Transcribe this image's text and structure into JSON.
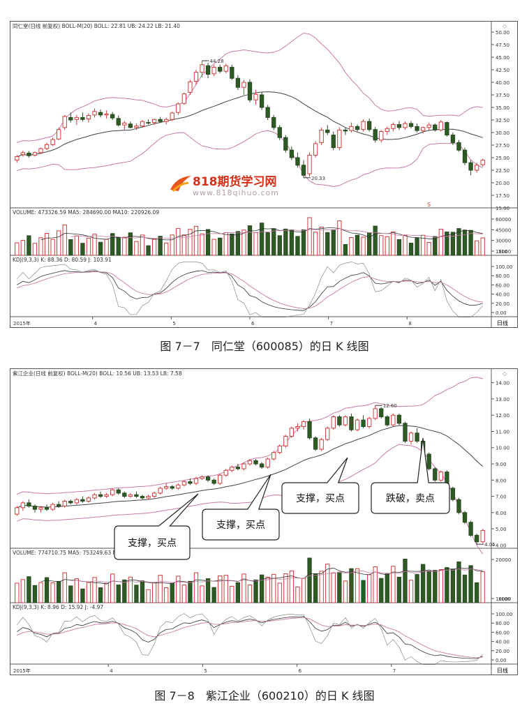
{
  "watermark": {
    "title": "818期货学习网",
    "url": "www.818qihuo.com"
  },
  "figure1": {
    "caption": "图 7－7　同仁堂（600085）的日 K 线图",
    "price_header": "同仁堂(日线 前复权) BOLL-M(20)  BOLL: 22.81  UB: 24.22  LB: 21.40",
    "volume_header": "VOLUME: 473326.59  MA5: 284690.00  MA10: 220926.09",
    "kdj_header": "KDJ(9,3,3)  K: 88.36  D: 80.59  J: 103.91",
    "price_ticks": [
      "50.00",
      "47.50",
      "45.00",
      "42.50",
      "40.00",
      "37.50",
      "35.00",
      "32.50",
      "30.00",
      "27.50",
      "25.00",
      "22.50",
      "20.00",
      "17.50",
      "15.00"
    ],
    "volume_ticks": [
      "60000",
      "45000",
      "30000",
      "15000"
    ],
    "volume_unit": "X10",
    "kdj_ticks": [
      "100.00",
      "80.00",
      "60.00",
      "40.00",
      "20.00",
      "0.00"
    ],
    "date_labels": [
      "2015年",
      "4",
      "5",
      "6",
      "7",
      "8"
    ],
    "period_label": "日线",
    "high_label": "44.28",
    "low_label": "20.33",
    "marker": "S"
  },
  "figure2": {
    "caption": "图 7－8　紫江企业（600210）的日 K 线图",
    "price_header": "紫江企业(日线 前复权) BOLL-M(20)  BOLL: 10.56  UB: 13.53  LB: 7.58",
    "volume_header": "VOLUME: 774710.75  MA5: 753249.63  MA10",
    "kdj_header": "KDJ(9,3,3)  K: 8.96  D: 15.92  J: -4.97",
    "price_ticks": [
      "14.00",
      "13.00",
      "12.00",
      "11.00",
      "10.00",
      "9.00",
      "8.00",
      "7.00",
      "6.00",
      "5.00",
      "4.00"
    ],
    "volume_ticks": [
      "20000",
      "10000"
    ],
    "volume_unit": "X100",
    "kdj_ticks": [
      "100.00",
      "80.00",
      "60.00",
      "40.00",
      "20.00",
      "0.00"
    ],
    "date_labels": [
      "2015年",
      "4",
      "5",
      "6",
      "7"
    ],
    "period_label": "日线",
    "high_label": "12.60",
    "low_label": "4.05",
    "callouts": [
      "支撑，买点",
      "支撑，买点",
      "支撑，买点",
      "跌破，卖点"
    ]
  },
  "chart_data": [
    {
      "type": "candlestick",
      "title": "同仁堂（600085）的日 K 线图",
      "indicator": "BOLL-M(20)",
      "ylim": [
        15,
        50
      ],
      "x": [
        "2015年",
        "4",
        "5",
        "6",
        "7",
        "8"
      ],
      "series": [
        {
          "values": [
            [
              24.5,
              25.5,
              24,
              25.2
            ],
            [
              25.6,
              26.4,
              25.2,
              26.0
            ],
            [
              25.9,
              26.3,
              25.0,
              25.4
            ],
            [
              25.5,
              26.2,
              25.2,
              26.0
            ],
            [
              26,
              27,
              25.7,
              26.8
            ],
            [
              26.8,
              28,
              26.5,
              27.6
            ],
            [
              27.6,
              29,
              27.3,
              28.6
            ],
            [
              28.7,
              31,
              28.5,
              30.6
            ],
            [
              31,
              33.5,
              30.5,
              33.2
            ],
            [
              33,
              34,
              32,
              32.5
            ],
            [
              32.6,
              33.5,
              31.5,
              33.0
            ],
            [
              33,
              34,
              32.2,
              32.6
            ],
            [
              32.7,
              33.8,
              32.0,
              33.4
            ],
            [
              33.5,
              34.8,
              33.0,
              34.2
            ],
            [
              34,
              34.6,
              33,
              33.5
            ],
            [
              33.5,
              34.4,
              32.8,
              33.7
            ],
            [
              33.6,
              34.1,
              32.5,
              32.9
            ],
            [
              32.8,
              33.4,
              31.2,
              31.5
            ],
            [
              31.5,
              32.3,
              30.5,
              31.9
            ],
            [
              31.7,
              32.2,
              30.8,
              31.0
            ],
            [
              31,
              31.8,
              30.5,
              31.3
            ],
            [
              31.3,
              32.5,
              31.0,
              32.2
            ],
            [
              32,
              32.6,
              31.6,
              31.9
            ],
            [
              32,
              32.8,
              31.5,
              32.6
            ],
            [
              32.6,
              33.1,
              31.9,
              32.2
            ],
            [
              32.2,
              33.0,
              31.6,
              32.6
            ],
            [
              32.6,
              34.2,
              32.3,
              33.9
            ],
            [
              34,
              36,
              33.5,
              35.7
            ],
            [
              35.8,
              38,
              35.5,
              37.7
            ],
            [
              38,
              40.5,
              37.5,
              40.1
            ],
            [
              40.2,
              42.5,
              39.5,
              42.0
            ],
            [
              42,
              44.3,
              41,
              43.5
            ],
            [
              43.3,
              43.9,
              40.8,
              41.6
            ],
            [
              41.7,
              43.5,
              41.2,
              43.0
            ],
            [
              43,
              43.5,
              41.8,
              42.2
            ],
            [
              42.2,
              43.7,
              41.8,
              43.3
            ],
            [
              43,
              43.5,
              40.5,
              40.8
            ],
            [
              40.8,
              41.4,
              38.5,
              39.0
            ],
            [
              39,
              40.5,
              37.5,
              40.0
            ],
            [
              40,
              40.6,
              36,
              36.5
            ],
            [
              36.5,
              38.5,
              35.5,
              37.6
            ],
            [
              37.5,
              38,
              34.5,
              35.0
            ],
            [
              35,
              35.5,
              32.5,
              33.0
            ],
            [
              33,
              33.5,
              30.5,
              31.0
            ],
            [
              31,
              31.5,
              28.5,
              29.0
            ],
            [
              29,
              29.5,
              26,
              26.5
            ],
            [
              26.5,
              27.2,
              24.5,
              25.0
            ],
            [
              25,
              26,
              23,
              23.5
            ],
            [
              23.5,
              24.5,
              21,
              21.5
            ],
            [
              21.8,
              26,
              21.2,
              25.5
            ],
            [
              25.5,
              28.3,
              25.0,
              27.8
            ],
            [
              28,
              31,
              27.5,
              30.5
            ],
            [
              30.5,
              31.5,
              29.5,
              30.0
            ],
            [
              29.5,
              30.2,
              26.5,
              27.0
            ],
            [
              27,
              31,
              26.5,
              30.5
            ],
            [
              30.5,
              31,
              29.5,
              30.3
            ],
            [
              30.4,
              32.0,
              30.0,
              31.2
            ],
            [
              31.2,
              31.6,
              30.2,
              30.6
            ],
            [
              30.6,
              32.6,
              30.2,
              32.2
            ],
            [
              32.2,
              32.8,
              30.2,
              30.6
            ],
            [
              30.6,
              31.1,
              28.0,
              28.5
            ],
            [
              28.5,
              30.5,
              28.0,
              30.2
            ],
            [
              30.2,
              31.2,
              29.5,
              30.8
            ],
            [
              30.8,
              32.0,
              30.2,
              31.6
            ],
            [
              31.6,
              32.3,
              30.5,
              31.0
            ],
            [
              31,
              32.2,
              30.6,
              31.8
            ],
            [
              31.8,
              32.3,
              30.8,
              31.2
            ],
            [
              31.2,
              31.8,
              30.0,
              30.4
            ],
            [
              30.4,
              31.2,
              29.8,
              31.0
            ],
            [
              31,
              32.0,
              30.5,
              31.5
            ],
            [
              31.5,
              31.8,
              30.2,
              30.5
            ],
            [
              30.5,
              32.5,
              30.2,
              32.1
            ],
            [
              32,
              32.2,
              29.2,
              29.5
            ],
            [
              29.5,
              30.0,
              27.5,
              28.0
            ],
            [
              28,
              28.5,
              26.2,
              26.5
            ],
            [
              26.5,
              27,
              23.5,
              24.0
            ],
            [
              24,
              24.5,
              21.5,
              22.5
            ],
            [
              22.5,
              24.0,
              22.0,
              23.5
            ],
            [
              23.6,
              24.8,
              23.2,
              24.5
            ]
          ]
        }
      ]
    },
    {
      "type": "candlestick",
      "title": "紫江企业（600210）的日 K 线图",
      "indicator": "BOLL-M(20)",
      "ylim": [
        3.8,
        14.2
      ],
      "x": [
        "2015年",
        "4",
        "5",
        "6",
        "7"
      ],
      "series": [
        {
          "values": [
            [
              5.9,
              6.4,
              5.8,
              6.3
            ],
            [
              6.3,
              6.7,
              6.1,
              6.6
            ],
            [
              6.6,
              6.8,
              6.3,
              6.4
            ],
            [
              6.4,
              6.5,
              6.0,
              6.2
            ],
            [
              6.2,
              6.4,
              6.0,
              6.3
            ],
            [
              6.3,
              6.5,
              6.1,
              6.2
            ],
            [
              6.2,
              6.6,
              6.1,
              6.5
            ],
            [
              6.5,
              6.7,
              6.3,
              6.4
            ],
            [
              6.4,
              6.8,
              6.3,
              6.7
            ],
            [
              6.7,
              6.8,
              6.5,
              6.6
            ],
            [
              6.6,
              6.9,
              6.5,
              6.8
            ],
            [
              6.8,
              7.0,
              6.6,
              6.7
            ],
            [
              6.7,
              7.0,
              6.6,
              6.9
            ],
            [
              6.9,
              7.2,
              6.8,
              7.1
            ],
            [
              7.1,
              7.3,
              6.9,
              7.0
            ],
            [
              7.0,
              7.2,
              6.9,
              7.1
            ],
            [
              7.1,
              7.5,
              7.0,
              7.4
            ],
            [
              7.4,
              7.5,
              7.1,
              7.2
            ],
            [
              7.2,
              7.3,
              6.9,
              7.0
            ],
            [
              7.0,
              7.2,
              6.9,
              7.1
            ],
            [
              7.1,
              7.3,
              6.9,
              7.0
            ],
            [
              7.0,
              7.1,
              6.8,
              6.9
            ],
            [
              6.9,
              7.1,
              6.8,
              7.0
            ],
            [
              7.0,
              7.3,
              6.9,
              7.2
            ],
            [
              7.2,
              7.6,
              7.1,
              7.5
            ],
            [
              7.5,
              7.8,
              7.4,
              7.6
            ],
            [
              7.6,
              7.7,
              7.4,
              7.5
            ],
            [
              7.5,
              7.8,
              7.4,
              7.7
            ],
            [
              7.7,
              8.0,
              7.6,
              7.9
            ],
            [
              7.9,
              8.1,
              7.7,
              7.8
            ],
            [
              7.8,
              8.2,
              7.7,
              8.1
            ],
            [
              8.1,
              8.3,
              8.0,
              8.2
            ],
            [
              8.2,
              8.3,
              7.9,
              8.0
            ],
            [
              8.0,
              8.1,
              7.7,
              7.8
            ],
            [
              7.8,
              8.4,
              7.7,
              8.3
            ],
            [
              8.3,
              8.7,
              8.2,
              8.6
            ],
            [
              8.6,
              8.9,
              8.5,
              8.8
            ],
            [
              8.8,
              9.0,
              8.6,
              8.7
            ],
            [
              8.7,
              9.1,
              8.6,
              9.0
            ],
            [
              9.0,
              9.3,
              8.9,
              9.2
            ],
            [
              9.2,
              9.3,
              8.9,
              9.0
            ],
            [
              9.0,
              9.1,
              8.7,
              8.8
            ],
            [
              8.8,
              9.4,
              8.7,
              9.3
            ],
            [
              9.3,
              9.8,
              9.2,
              9.7
            ],
            [
              9.7,
              10.2,
              9.6,
              10.1
            ],
            [
              10.1,
              10.8,
              10.0,
              10.7
            ],
            [
              10.7,
              11.3,
              10.6,
              11.2
            ],
            [
              11.2,
              11.5,
              11.0,
              11.3
            ],
            [
              11.3,
              11.7,
              11.1,
              11.6
            ],
            [
              11.6,
              11.8,
              10.5,
              10.6
            ],
            [
              10.6,
              10.7,
              9.8,
              9.9
            ],
            [
              9.9,
              10.6,
              9.8,
              10.5
            ],
            [
              10.5,
              11.3,
              10.4,
              11.2
            ],
            [
              11.2,
              12.0,
              11.1,
              11.9
            ],
            [
              11.9,
              12.0,
              11.3,
              11.4
            ],
            [
              11.4,
              12.0,
              11.3,
              11.9
            ],
            [
              11.9,
              12.1,
              11.0,
              11.1
            ],
            [
              11.1,
              11.8,
              11.0,
              11.7
            ],
            [
              11.7,
              12.0,
              11.2,
              11.3
            ],
            [
              11.3,
              11.9,
              11.2,
              11.8
            ],
            [
              11.8,
              12.6,
              11.7,
              12.4
            ],
            [
              12.4,
              12.5,
              11.8,
              11.9
            ],
            [
              11.9,
              12.0,
              11.3,
              11.4
            ],
            [
              11.4,
              12.1,
              11.3,
              12.0
            ],
            [
              12.0,
              12.1,
              11.4,
              11.5
            ],
            [
              11.5,
              11.6,
              10.3,
              10.4
            ],
            [
              10.4,
              11.0,
              10.2,
              10.9
            ],
            [
              10.9,
              11.2,
              10.3,
              10.4
            ],
            [
              10.4,
              10.5,
              9.5,
              9.6
            ],
            [
              9.6,
              9.7,
              8.6,
              8.7
            ],
            [
              8.7,
              8.8,
              7.9,
              8.0
            ],
            [
              8.0,
              8.6,
              7.9,
              8.5
            ],
            [
              8.5,
              8.6,
              7.4,
              7.5
            ],
            [
              7.5,
              7.6,
              6.7,
              6.8
            ],
            [
              6.8,
              6.9,
              5.9,
              6.0
            ],
            [
              6.0,
              6.1,
              5.3,
              5.4
            ],
            [
              5.4,
              5.5,
              4.5,
              4.6
            ],
            [
              4.6,
              4.7,
              4.05,
              4.2
            ],
            [
              4.2,
              5.0,
              4.1,
              4.9
            ]
          ]
        }
      ]
    }
  ]
}
